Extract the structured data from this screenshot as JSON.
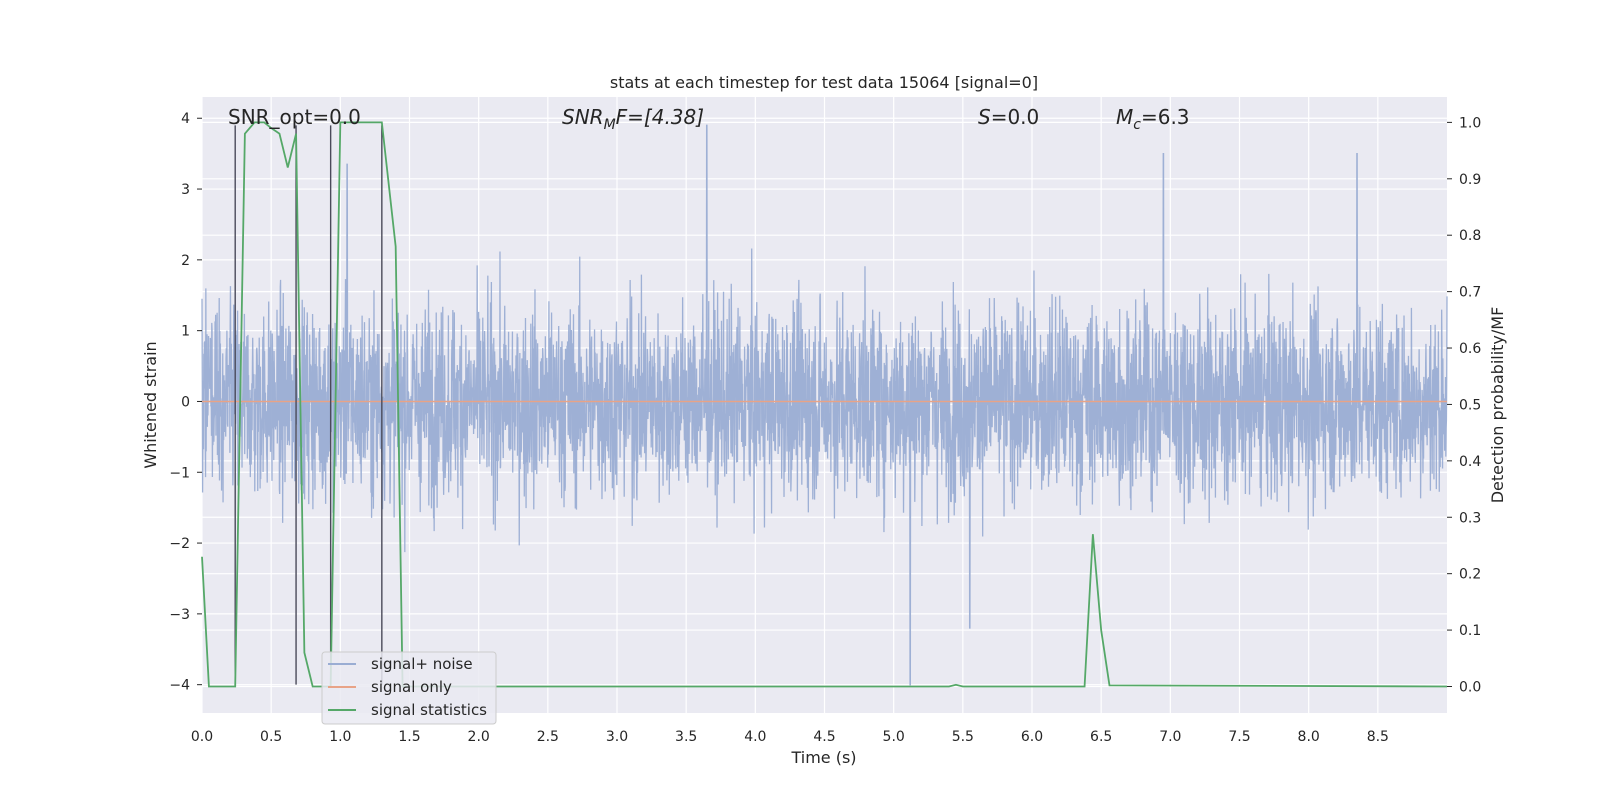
{
  "chart_data": {
    "type": "line",
    "title": "stats at each timestep for test data 15064 [signal=0]",
    "xlabel": "Time (s)",
    "ylabel_left": "Whitened strain",
    "ylabel_right": "Detection probability/MF",
    "xlim": [
      0.0,
      9.0
    ],
    "ylim_left": [
      -4.4,
      4.3
    ],
    "ylim_right": [
      -0.047,
      1.045
    ],
    "xticks": [
      "0.0",
      "0.5",
      "1.0",
      "1.5",
      "2.0",
      "2.5",
      "3.0",
      "3.5",
      "4.0",
      "4.5",
      "5.0",
      "5.5",
      "6.0",
      "6.5",
      "7.0",
      "7.5",
      "8.0",
      "8.5"
    ],
    "yticks_left": [
      "−4",
      "−3",
      "−2",
      "−1",
      "0",
      "1",
      "2",
      "3",
      "4"
    ],
    "yticks_right": [
      "0.0",
      "0.1",
      "0.2",
      "0.3",
      "0.4",
      "0.5",
      "0.6",
      "0.7",
      "0.8",
      "0.9",
      "1.0"
    ],
    "grid": true,
    "legend_position": "lower-left",
    "annotations": {
      "snr_opt": "SNR_opt=0.0",
      "snr_mf_label": "SNR",
      "snr_mf_sub": "M",
      "snr_mf_rest": "F=[4.38]",
      "s_label": "S",
      "s_rest": "=0.0",
      "mc_label": "M",
      "mc_sub": "c",
      "mc_rest": "=6.3"
    },
    "series": [
      {
        "name": "signal+ noise",
        "color": "#9aadd3",
        "description_range": [
          -4.0,
          3.9
        ],
        "envelope_upper_approx": 1.7,
        "envelope_lower_approx": -1.7,
        "peaks": [
          {
            "x": 3.65,
            "y": 3.9
          },
          {
            "x": 5.12,
            "y": -4.0
          },
          {
            "x": 1.05,
            "y": 3.35
          },
          {
            "x": 6.95,
            "y": 3.5
          },
          {
            "x": 8.35,
            "y": 3.5
          },
          {
            "x": 5.55,
            "y": -3.2
          }
        ]
      },
      {
        "name": "signal only",
        "color": "#e8a387",
        "y_constant": 0.0
      },
      {
        "name": "signal statistics",
        "color": "#55a868",
        "axis": "right",
        "x": [
          0.0,
          0.05,
          0.24,
          0.31,
          0.38,
          0.45,
          0.5,
          0.56,
          0.62,
          0.68,
          0.74,
          0.8,
          0.87,
          0.93,
          1.0,
          1.3,
          1.4,
          1.45,
          1.5,
          5.4,
          5.45,
          5.5,
          6.38,
          6.44,
          6.5,
          6.56,
          9.0
        ],
        "y": [
          0.23,
          0.0,
          0.0,
          0.98,
          1.0,
          1.0,
          0.99,
          0.98,
          0.92,
          0.98,
          0.06,
          0.0,
          0.0,
          0.0,
          1.0,
          1.0,
          0.78,
          0.0,
          0.0,
          0.0,
          0.003,
          0.0,
          0.0,
          0.27,
          0.1,
          0.002,
          0.0
        ]
      }
    ],
    "vertical_markers_x": [
      0.24,
      0.68,
      0.93,
      1.3
    ]
  }
}
